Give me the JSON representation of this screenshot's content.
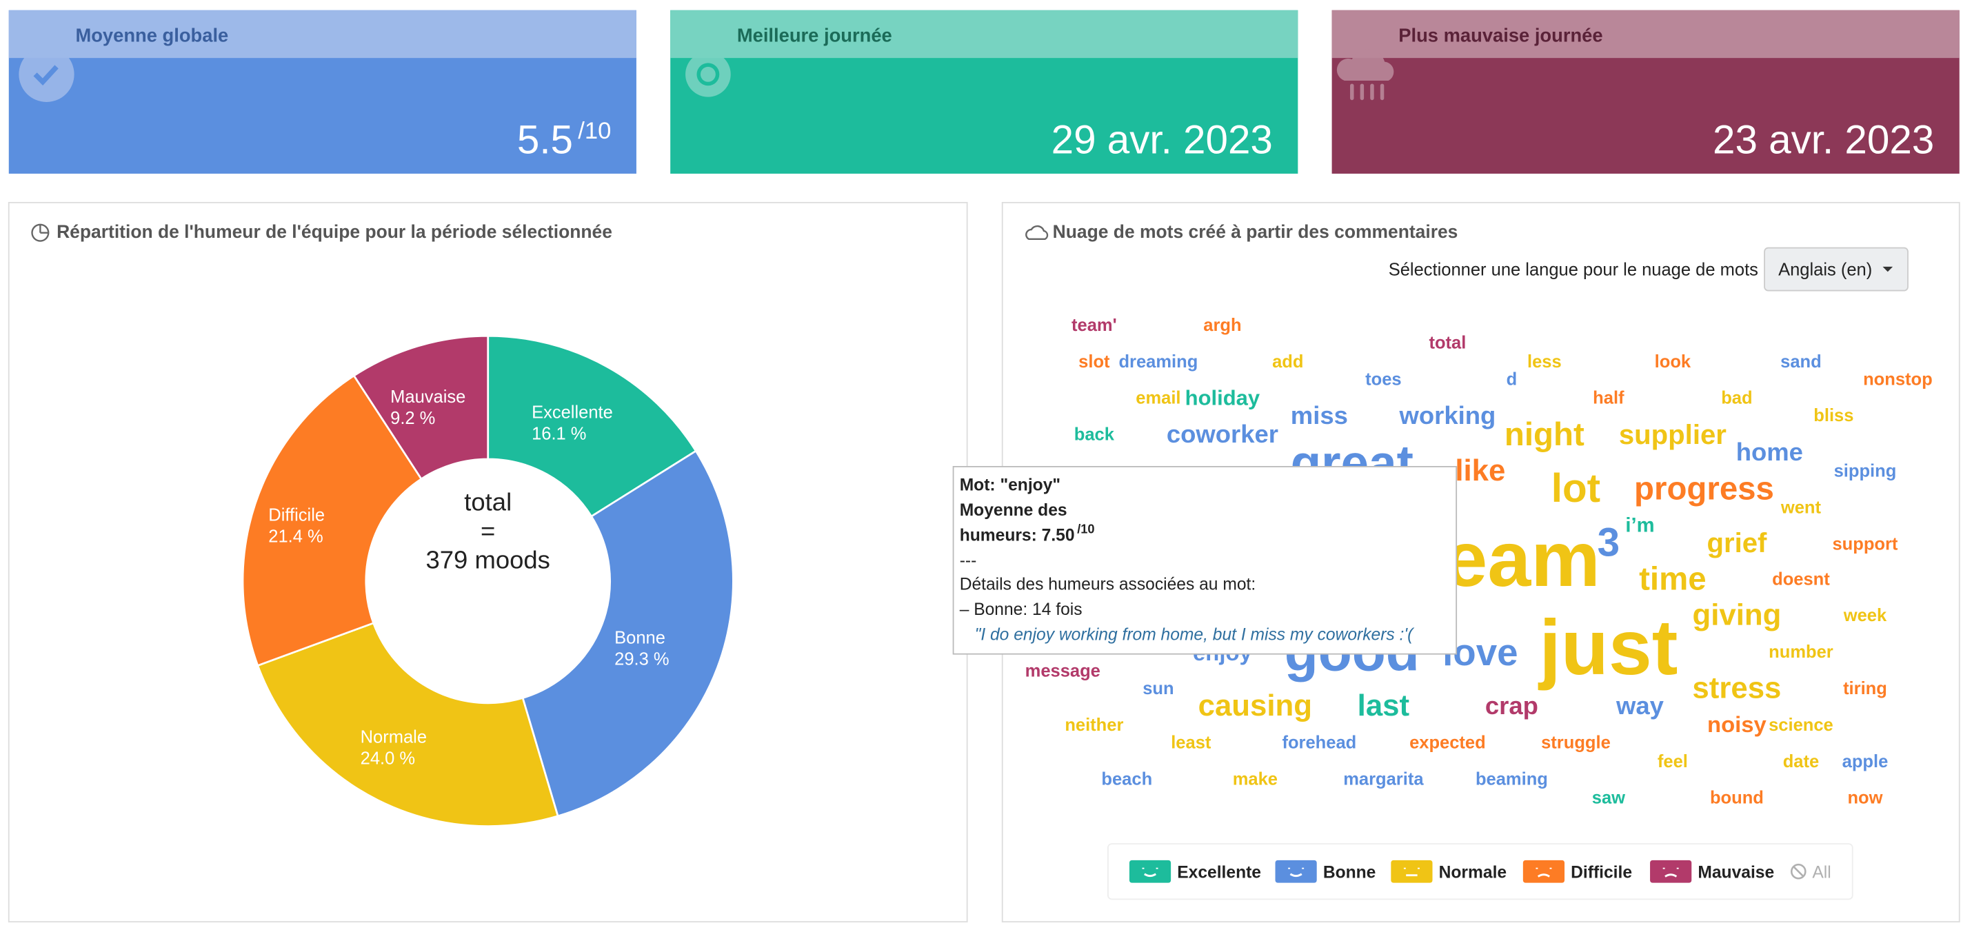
{
  "cards": [
    {
      "title": "Moyenne globale",
      "value": "5.5",
      "suffix": "/10",
      "color": "#5b8fdf",
      "header_color": "#9db9e9",
      "title_color": "#3a5f9e"
    },
    {
      "title": "Meilleure journée",
      "value": "29 avr. 2023",
      "color": "#1dbc9c",
      "header_color": "#77d3c1",
      "title_color": "#1b6b58"
    },
    {
      "title": "Plus mauvaise journée",
      "value": "23 avr. 2023",
      "color": "#8c3857",
      "header_color": "#b98799",
      "title_color": "#5a2238"
    }
  ],
  "chart_data": {
    "type": "pie",
    "title": "Répartition de l'humeur de l'équipe pour la période sélectionnée",
    "categories": [
      "Excellente",
      "Bonne",
      "Normale",
      "Difficile",
      "Mauvaise"
    ],
    "values": [
      16.1,
      29.3,
      24.0,
      21.4,
      9.2
    ],
    "value_labels": [
      "16.1 %",
      "29.3 %",
      "24.0 %",
      "21.4 %",
      "9.2 %"
    ],
    "colors": [
      "#1dbc9c",
      "#5b8fdf",
      "#f0c415",
      "#fd7c24",
      "#b23a6a"
    ],
    "center_label": [
      "total",
      "=",
      "379 moods"
    ]
  },
  "wordcloud": {
    "title": "Nuage de mots créé à partir des commentaires",
    "language_prompt": "Sélectionner une langue pour le nuage de mots",
    "language": "Anglais (en)",
    "words": [
      {
        "text": "team'",
        "color": "#b23a6a"
      },
      {
        "text": "argh",
        "color": "#fd7c24"
      },
      {
        "text": "total",
        "color": "#b23a6a"
      },
      {
        "text": "slot",
        "color": "#fd7c24"
      },
      {
        "text": "dreaming",
        "color": "#5b8fdf"
      },
      {
        "text": "add",
        "color": "#f0c415"
      },
      {
        "text": "toes",
        "color": "#5b8fdf"
      },
      {
        "text": "d",
        "color": "#5b8fdf"
      },
      {
        "text": "less",
        "color": "#f0c415"
      },
      {
        "text": "look",
        "color": "#fd7c24"
      },
      {
        "text": "sand",
        "color": "#5b8fdf"
      },
      {
        "text": "nonstop",
        "color": "#fd7c24"
      },
      {
        "text": "email",
        "color": "#f0c415"
      },
      {
        "text": "holiday",
        "color": "#1dbc9c"
      },
      {
        "text": "miss",
        "color": "#5b8fdf"
      },
      {
        "text": "working",
        "color": "#5b8fdf"
      },
      {
        "text": "half",
        "color": "#fd7c24"
      },
      {
        "text": "bad",
        "color": "#f0c415"
      },
      {
        "text": "bliss",
        "color": "#f0c415"
      },
      {
        "text": "back",
        "color": "#1dbc9c"
      },
      {
        "text": "coworker",
        "color": "#5b8fdf"
      },
      {
        "text": "night",
        "color": "#f0c415"
      },
      {
        "text": "supplier",
        "color": "#f0c415"
      },
      {
        "text": "home",
        "color": "#5b8fdf"
      },
      {
        "text": "sipping",
        "color": "#5b8fdf"
      },
      {
        "text": "great",
        "color": "#5b8fdf"
      },
      {
        "text": "like",
        "color": "#fd7c24"
      },
      {
        "text": "lot",
        "color": "#f0c415"
      },
      {
        "text": "progress",
        "color": "#fd7c24"
      },
      {
        "text": "went",
        "color": "#f0c415"
      },
      {
        "text": "i’m",
        "color": "#1dbc9c"
      },
      {
        "text": "3",
        "color": "#5b8fdf"
      },
      {
        "text": "grief",
        "color": "#f0c415"
      },
      {
        "text": "support",
        "color": "#fd7c24"
      },
      {
        "text": "team",
        "color": "#f0c415"
      },
      {
        "text": "time",
        "color": "#f0c415"
      },
      {
        "text": "doesnt",
        "color": "#fd7c24"
      },
      {
        "text": "giving",
        "color": "#f0c415"
      },
      {
        "text": "week",
        "color": "#f0c415"
      },
      {
        "text": "just",
        "color": "#f0c415"
      },
      {
        "text": "good",
        "color": "#5b8fdf"
      },
      {
        "text": "love",
        "color": "#5b8fdf"
      },
      {
        "text": "enjoy",
        "color": "#5b8fdf"
      },
      {
        "text": "number",
        "color": "#f0c415"
      },
      {
        "text": "message",
        "color": "#b23a6a"
      },
      {
        "text": "sun",
        "color": "#5b8fdf"
      },
      {
        "text": "causing",
        "color": "#f0c415"
      },
      {
        "text": "last",
        "color": "#1dbc9c"
      },
      {
        "text": "crap",
        "color": "#b23a6a"
      },
      {
        "text": "way",
        "color": "#5b8fdf"
      },
      {
        "text": "stress",
        "color": "#f0c415"
      },
      {
        "text": "tiring",
        "color": "#fd7c24"
      },
      {
        "text": "neither",
        "color": "#f0c415"
      },
      {
        "text": "noisy",
        "color": "#fd7c24"
      },
      {
        "text": "science",
        "color": "#f0c415"
      },
      {
        "text": "least",
        "color": "#f0c415"
      },
      {
        "text": "forehead",
        "color": "#5b8fdf"
      },
      {
        "text": "expected",
        "color": "#fd7c24"
      },
      {
        "text": "struggle",
        "color": "#fd7c24"
      },
      {
        "text": "feel",
        "color": "#f0c415"
      },
      {
        "text": "date",
        "color": "#f0c415"
      },
      {
        "text": "apple",
        "color": "#5b8fdf"
      },
      {
        "text": "beach",
        "color": "#5b8fdf"
      },
      {
        "text": "make",
        "color": "#f0c415"
      },
      {
        "text": "margarita",
        "color": "#5b8fdf"
      },
      {
        "text": "beaming",
        "color": "#5b8fdf"
      },
      {
        "text": "saw",
        "color": "#1dbc9c"
      },
      {
        "text": "bound",
        "color": "#fd7c24"
      },
      {
        "text": "now",
        "color": "#fd7c24"
      }
    ],
    "tooltip": {
      "word_line": "Mot: \"enjoy\"",
      "avg_line_1": "Moyenne des",
      "avg_line_2": "humeurs: 7.50",
      "avg_suffix": "/10",
      "separator": "---",
      "details": "Détails des humeurs associées au mot:",
      "detail_item": "– Bonne: 14 fois",
      "quote": "\"I do enjoy working from home, but I miss my coworkers :'("
    },
    "legend": [
      {
        "label": "Excellente",
        "color": "#1dbc9c"
      },
      {
        "label": "Bonne",
        "color": "#5b8fdf"
      },
      {
        "label": "Normale",
        "color": "#f0c415"
      },
      {
        "label": "Difficile",
        "color": "#fd7c24"
      },
      {
        "label": "Mauvaise",
        "color": "#b23a6a"
      },
      {
        "label": "All",
        "color": "#b0b0b0"
      }
    ]
  }
}
